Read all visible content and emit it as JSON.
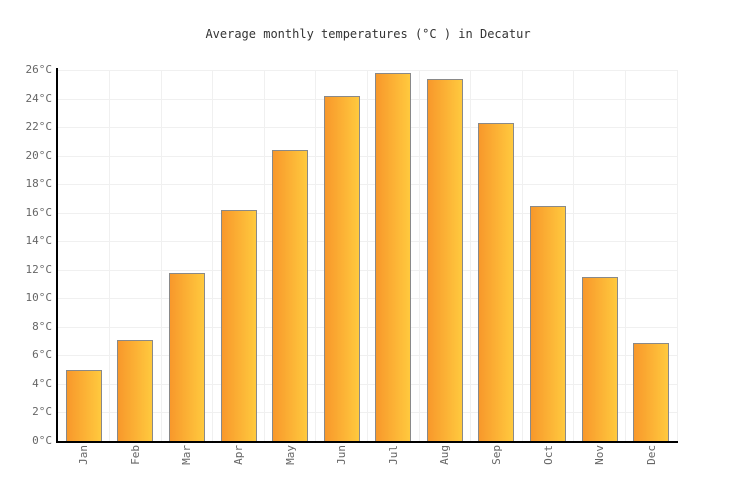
{
  "chart": {
    "title": "Average monthly temperatures (°C ) in Decatur"
  },
  "chart_data": {
    "type": "bar",
    "title": "Average monthly temperatures (°C ) in Decatur",
    "categories": [
      "Jan",
      "Feb",
      "Mar",
      "Apr",
      "May",
      "Jun",
      "Jul",
      "Aug",
      "Sep",
      "Oct",
      "Nov",
      "Dec"
    ],
    "values": [
      5.0,
      7.1,
      11.8,
      16.2,
      20.4,
      24.2,
      25.8,
      25.4,
      22.3,
      16.5,
      11.5,
      6.9
    ],
    "xlabel": "",
    "ylabel": "",
    "ylim": [
      0,
      26
    ],
    "ytick_step": 2,
    "ytick_suffix": "°C",
    "grid": true,
    "legend": "none",
    "colors": {
      "bar_gradient_left": "#f8982b",
      "bar_gradient_right": "#ffc93e",
      "bar_border": "#898989",
      "grid_line": "#f0f0f0",
      "axis_line": "#000000",
      "tick_label": "#666666",
      "title_text": "#333333",
      "background": "#ffffff"
    }
  }
}
